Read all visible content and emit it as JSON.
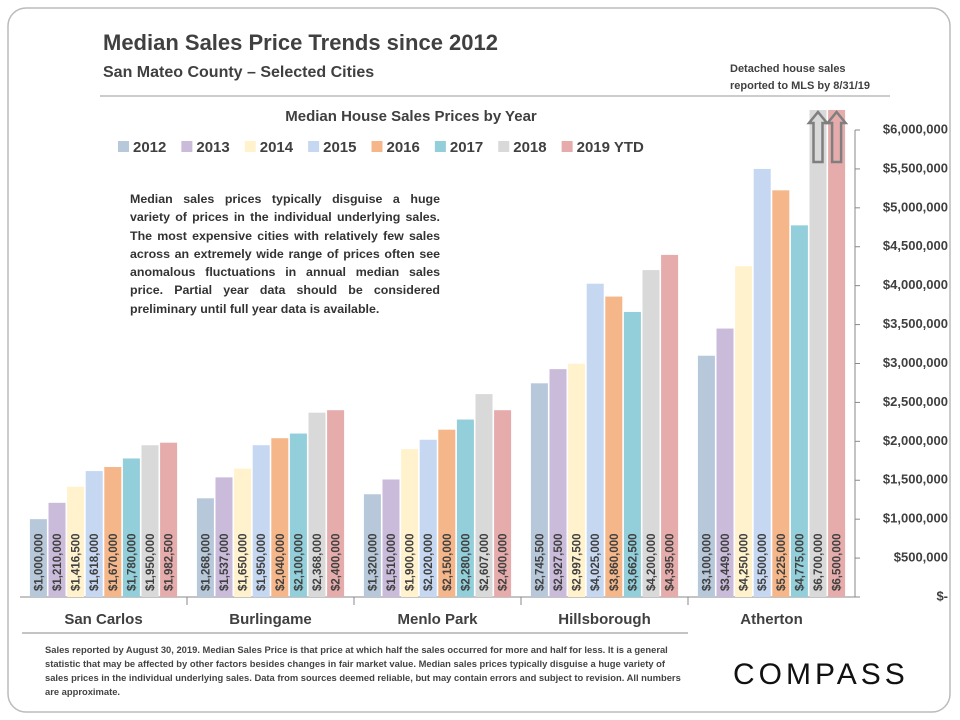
{
  "chart_data": {
    "type": "bar",
    "title": "Median Sales Price Trends since 2012",
    "subtitle": "San Mateo County – Selected Cities",
    "source_note": [
      "Detached house sales",
      "reported to MLS by 8/31/19"
    ],
    "chart_title": "Median House Sales Prices by Year",
    "annotation": "Median sales prices typically disguise a huge variety of prices in the individual underlying sales. The most expensive cities with relatively few sales across an extremely wide range of prices often see anomalous fluctuations in annual median sales price.    Partial year data should be considered preliminary until full year data is available.",
    "footnote": "Sales reported by August 30, 2019. Median Sales Price is that price at which half the sales occurred for more and half for less. It is a general statistic that may be affected by other factors besides changes in fair market value. Median sales prices typically disguise a huge variety of sales prices in the individual underlying sales. Data from sources deemed reliable, but may contain errors and subject to revision.   All numbers are approximate.",
    "logo": "COMPASS",
    "categories": [
      "San Carlos",
      "Burlingame",
      "Menlo Park",
      "Hillsborough",
      "Atherton"
    ],
    "series": [
      {
        "name": "2012",
        "color": "#b7c8db",
        "values": [
          1000000,
          1268000,
          1320000,
          2745500,
          3100000
        ],
        "value_labels": [
          "$1,000,000",
          "$1,268,000",
          "$1,320,000",
          "$2,745,500",
          "$3,100,000"
        ]
      },
      {
        "name": "2013",
        "color": "#cbbbdb",
        "values": [
          1210000,
          1537000,
          1510000,
          2927500,
          3449000
        ],
        "value_labels": [
          "$1,210,000",
          "$1,537,000",
          "$1,510,000",
          "$2,927,500",
          "$3,449,000"
        ]
      },
      {
        "name": "2014",
        "color": "#fff2cc",
        "values": [
          1416500,
          1650000,
          1900000,
          2997500,
          4250000
        ],
        "value_labels": [
          "$1,416,500",
          "$1,650,000",
          "$1,900,000",
          "$2,997,500",
          "$4,250,000"
        ]
      },
      {
        "name": "2015",
        "color": "#c6d7f1",
        "values": [
          1618000,
          1950000,
          2020000,
          4025000,
          5500000
        ],
        "value_labels": [
          "$1,618,000",
          "$1,950,000",
          "$2,020,000",
          "$4,025,000",
          "$5,500,000"
        ]
      },
      {
        "name": "2016",
        "color": "#f5b78a",
        "values": [
          1670000,
          2040000,
          2150000,
          3860000,
          5225000
        ],
        "value_labels": [
          "$1,670,000",
          "$2,040,000",
          "$2,150,000",
          "$3,860,000",
          "$5,225,000"
        ]
      },
      {
        "name": "2017",
        "color": "#92cfda",
        "values": [
          1780000,
          2100000,
          2280000,
          3662500,
          4775000
        ],
        "value_labels": [
          "$1,780,000",
          "$2,100,000",
          "$2,280,000",
          "$3,662,500",
          "$4,775,000"
        ]
      },
      {
        "name": "2018",
        "color": "#d9d9d9",
        "values": [
          1950000,
          2368000,
          2607000,
          4200000,
          6700000
        ],
        "value_labels": [
          "$1,950,000",
          "$2,368,000",
          "$2,607,000",
          "$4,200,000",
          "$6,700,000"
        ]
      },
      {
        "name": "2019 YTD",
        "color": "#e6acab",
        "values": [
          1982500,
          2400000,
          2400000,
          4395000,
          6500000
        ],
        "value_labels": [
          "$1,982,500",
          "$2,400,000",
          "$2,400,000",
          "$4,395,000",
          "$6,500,000"
        ]
      }
    ],
    "ylim": [
      0,
      6000000
    ],
    "yticks": [
      {
        "value": 0,
        "label": "$-"
      },
      {
        "value": 500000,
        "label": "$500,000"
      },
      {
        "value": 1000000,
        "label": "$1,000,000"
      },
      {
        "value": 1500000,
        "label": "$1,500,000"
      },
      {
        "value": 2000000,
        "label": "$2,000,000"
      },
      {
        "value": 2500000,
        "label": "$2,500,000"
      },
      {
        "value": 3000000,
        "label": "$3,000,000"
      },
      {
        "value": 3500000,
        "label": "$3,500,000"
      },
      {
        "value": 4000000,
        "label": "$4,000,000"
      },
      {
        "value": 4500000,
        "label": "$4,500,000"
      },
      {
        "value": 5000000,
        "label": "$5,000,000"
      },
      {
        "value": 5500000,
        "label": "$5,500,000"
      },
      {
        "value": 6000000,
        "label": "$6,000,000"
      }
    ],
    "y_axis_side": "right",
    "grid": false,
    "legend": "top"
  }
}
